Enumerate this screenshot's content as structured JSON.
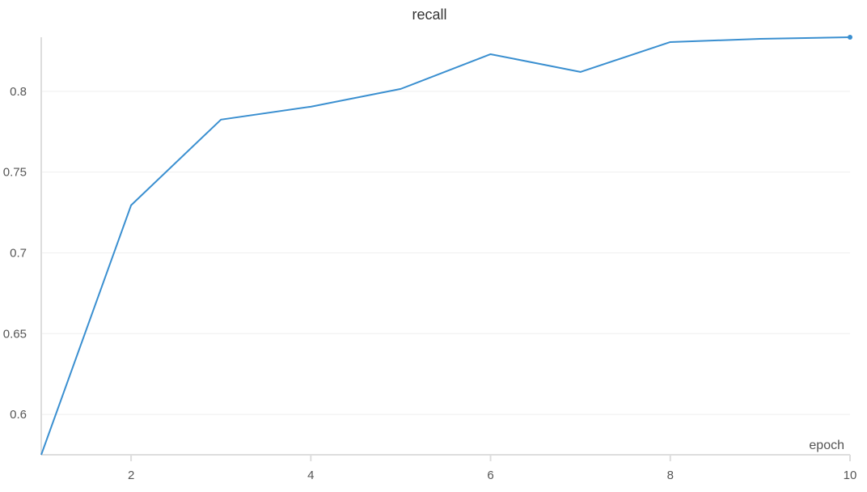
{
  "chart_data": {
    "type": "line",
    "title": "recall",
    "xlabel": "epoch",
    "ylabel": "",
    "xlim": [
      1,
      10
    ],
    "ylim": [
      0.575,
      0.8335
    ],
    "x_ticks": [
      2,
      4,
      6,
      8,
      10
    ],
    "y_ticks": [
      0.6,
      0.65,
      0.7,
      0.75,
      0.8
    ],
    "grid": "horizontal",
    "series": [
      {
        "color": "#3a8fd0",
        "x": [
          1,
          2,
          3,
          4,
          5,
          6,
          7,
          8,
          9,
          10
        ],
        "y": [
          0.575,
          0.7295,
          0.7825,
          0.7905,
          0.8015,
          0.823,
          0.812,
          0.8305,
          0.8325,
          0.8335
        ]
      }
    ],
    "colors": {
      "line": "#3a8fd0",
      "grid": "#efefef",
      "axis": "#dddddd",
      "tick_text": "#555555"
    }
  }
}
